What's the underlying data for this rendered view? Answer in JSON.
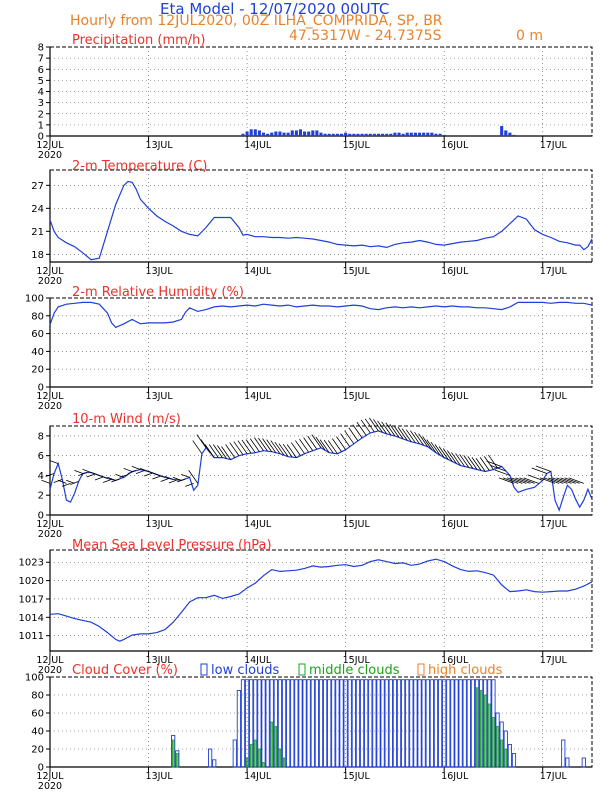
{
  "header": {
    "title": "Eta Model - 12/07/2020 00UTC",
    "subtitle": "Hourly from 12JUL2020, 00Z  ILHA_COMPRIDA, SP, BR",
    "coordinates": "47.5317W - 24.7375S",
    "elevation": "0  m"
  },
  "colors": {
    "series": "#1f3fd8",
    "title": "#e8322c",
    "header": "#e8822a",
    "middle": "#1aa31a",
    "high": "#e8822a"
  },
  "x_axis": {
    "tick_labels": [
      "12JUL",
      "13JUL",
      "14JUL",
      "15JUL",
      "16JUL",
      "17JUL"
    ],
    "year_label": "2020",
    "ticks": [
      0,
      24,
      48,
      72,
      96,
      120
    ],
    "range_hours": [
      0,
      132
    ]
  },
  "chart_data": [
    {
      "type": "bar",
      "title": "Precipitation (mm/h)",
      "ylim": [
        0,
        8
      ],
      "y_ticks": [
        "0",
        "1",
        "2",
        "3",
        "4",
        "5",
        "6",
        "7",
        "8"
      ],
      "x_hours": [
        47,
        48,
        49,
        50,
        51,
        52,
        53,
        54,
        55,
        56,
        57,
        58,
        59,
        60,
        61,
        62,
        63,
        64,
        65,
        66,
        67,
        68,
        69,
        70,
        71,
        72,
        73,
        74,
        75,
        76,
        77,
        78,
        79,
        80,
        81,
        82,
        83,
        84,
        85,
        86,
        87,
        88,
        89,
        90,
        91,
        92,
        93,
        94,
        95,
        96,
        97,
        98,
        99,
        100,
        101,
        102,
        103,
        104,
        105,
        106,
        107,
        108,
        109,
        110,
        111,
        112,
        113
      ],
      "values": [
        0.2,
        0.4,
        0.6,
        0.6,
        0.5,
        0.3,
        0.2,
        0.3,
        0.4,
        0.4,
        0.3,
        0.3,
        0.5,
        0.5,
        0.6,
        0.4,
        0.4,
        0.5,
        0.5,
        0.3,
        0.2,
        0.2,
        0.2,
        0.2,
        0.2,
        0.3,
        0.2,
        0.2,
        0.2,
        0.2,
        0.2,
        0.2,
        0.2,
        0.2,
        0.2,
        0.2,
        0.2,
        0.3,
        0.3,
        0.2,
        0.3,
        0.3,
        0.3,
        0.3,
        0.3,
        0.3,
        0.3,
        0.2,
        0.2,
        0.1,
        0,
        0,
        0,
        0,
        0,
        0,
        0,
        0,
        0,
        0,
        0,
        0,
        0,
        0.9,
        0.5,
        0.3,
        0.1
      ]
    },
    {
      "type": "line",
      "title": "2-m Temperature (C)",
      "ylim": [
        17,
        29
      ],
      "y_ticks": [
        "18",
        "21",
        "24",
        "27"
      ],
      "y_tick_values": [
        18,
        21,
        24,
        27
      ],
      "x": [
        0,
        1,
        2,
        4,
        6,
        8,
        10,
        12,
        14,
        16,
        18,
        19,
        20,
        21,
        22,
        24,
        26,
        28,
        30,
        32,
        34,
        36,
        38,
        40,
        42,
        44,
        46,
        47,
        48,
        50,
        52,
        54,
        56,
        58,
        60,
        62,
        64,
        66,
        68,
        70,
        72,
        74,
        76,
        78,
        80,
        82,
        84,
        86,
        88,
        90,
        92,
        94,
        96,
        98,
        100,
        102,
        104,
        106,
        108,
        110,
        112,
        114,
        116,
        118,
        120,
        122,
        124,
        126,
        128,
        129,
        130,
        131,
        132
      ],
      "values": [
        22.5,
        21,
        20.2,
        19.5,
        19,
        18.2,
        17.3,
        17.5,
        21,
        24.5,
        27,
        27.5,
        27.4,
        26.5,
        25.2,
        24,
        23,
        22.3,
        21.7,
        21,
        20.6,
        20.4,
        21.5,
        22.8,
        22.8,
        22.8,
        21.5,
        20.5,
        20.6,
        20.3,
        20.3,
        20.2,
        20.2,
        20.1,
        20.2,
        20.1,
        20,
        19.8,
        19.6,
        19.3,
        19.2,
        19.1,
        19.2,
        19,
        19.1,
        18.9,
        19.3,
        19.5,
        19.6,
        19.8,
        19.6,
        19.3,
        19.2,
        19.4,
        19.6,
        19.7,
        19.8,
        20.1,
        20.3,
        21,
        22,
        23,
        22.6,
        21.2,
        20.6,
        20.2,
        19.7,
        19.5,
        19.2,
        19.2,
        18.6,
        19,
        20
      ]
    },
    {
      "type": "line",
      "title": "2-m Relative Humidity (%)",
      "ylim": [
        0,
        100
      ],
      "y_ticks": [
        "0",
        "20",
        "40",
        "60",
        "80",
        "100"
      ],
      "y_tick_values": [
        0,
        20,
        40,
        60,
        80,
        100
      ],
      "x": [
        0,
        1,
        2,
        4,
        6,
        8,
        10,
        12,
        14,
        15,
        16,
        18,
        20,
        22,
        24,
        26,
        28,
        30,
        32,
        33,
        34,
        36,
        38,
        40,
        42,
        44,
        46,
        48,
        50,
        52,
        54,
        56,
        58,
        60,
        62,
        64,
        66,
        68,
        70,
        72,
        74,
        76,
        78,
        80,
        82,
        84,
        86,
        88,
        90,
        92,
        94,
        96,
        98,
        100,
        102,
        104,
        106,
        108,
        110,
        112,
        114,
        116,
        118,
        120,
        122,
        124,
        126,
        128,
        130,
        132
      ],
      "values": [
        70,
        83,
        90,
        93,
        94,
        95,
        95,
        93,
        83,
        72,
        67,
        71,
        76,
        71,
        72,
        72,
        72,
        73,
        76,
        84,
        89,
        85,
        87,
        90,
        91,
        90,
        91,
        92,
        91,
        93,
        92,
        91,
        92,
        90,
        91,
        92,
        91,
        91,
        90,
        91,
        92,
        91,
        88,
        87,
        89,
        90,
        89,
        90,
        89,
        90,
        91,
        90,
        91,
        90,
        90,
        89,
        89,
        88,
        87,
        90,
        95,
        95,
        95,
        95,
        94,
        95,
        95,
        94,
        94,
        92
      ]
    },
    {
      "type": "line",
      "title": "10-m Wind (m/s)",
      "ylim": [
        0,
        9
      ],
      "y_ticks": [
        "0",
        "2",
        "4",
        "6",
        "8"
      ],
      "y_tick_values": [
        0,
        2,
        4,
        6,
        8
      ],
      "x": [
        0,
        1,
        2,
        3,
        4,
        5,
        6,
        7,
        8,
        9,
        10,
        12,
        14,
        16,
        18,
        20,
        22,
        24,
        26,
        28,
        30,
        32,
        34,
        35,
        36,
        37,
        38,
        40,
        42,
        44,
        46,
        48,
        50,
        52,
        54,
        56,
        58,
        60,
        62,
        64,
        66,
        68,
        70,
        72,
        74,
        76,
        78,
        80,
        82,
        84,
        86,
        88,
        90,
        92,
        94,
        96,
        98,
        100,
        102,
        104,
        106,
        108,
        110,
        112,
        113,
        114,
        116,
        118,
        120,
        121,
        122,
        123,
        124,
        125,
        126,
        127,
        128,
        129,
        130,
        131,
        132
      ],
      "values": [
        2.6,
        4.2,
        5.2,
        3.6,
        1.5,
        1.3,
        2.2,
        3.4,
        4.2,
        4.3,
        4.3,
        4,
        3.7,
        3.5,
        3.8,
        4.4,
        4.6,
        4.4,
        4.1,
        3.8,
        3.6,
        3.5,
        3.8,
        2.5,
        3,
        6.2,
        6.8,
        5.8,
        5.8,
        5.6,
        6,
        6.2,
        6.3,
        6.5,
        6.4,
        6.2,
        5.9,
        5.8,
        6.2,
        6.5,
        6.8,
        6.3,
        6.2,
        6.6,
        7.2,
        7.8,
        8.3,
        8.5,
        8.2,
        8,
        7.7,
        7.4,
        7.2,
        6.9,
        6.3,
        5.8,
        5.4,
        5,
        4.8,
        4.6,
        4.4,
        4.6,
        4.9,
        4,
        2.8,
        2.3,
        2.6,
        2.8,
        3.5,
        4.2,
        4.4,
        1.5,
        0.5,
        1.8,
        3,
        2.6,
        1.6,
        0.8,
        1.5,
        2.6,
        1.6
      ]
    },
    {
      "type": "line",
      "title": "Mean Sea Level Pressure (hPa)",
      "ylim": [
        1008.5,
        1025
      ],
      "y_ticks": [
        "1011",
        "1014",
        "1017",
        "1020",
        "1023"
      ],
      "y_tick_values": [
        1011,
        1014,
        1017,
        1020,
        1023
      ],
      "x": [
        0,
        2,
        4,
        6,
        8,
        10,
        12,
        14,
        16,
        17,
        18,
        20,
        22,
        24,
        26,
        28,
        30,
        32,
        34,
        36,
        38,
        40,
        42,
        44,
        46,
        48,
        50,
        52,
        54,
        56,
        58,
        60,
        62,
        64,
        66,
        68,
        70,
        72,
        74,
        76,
        78,
        80,
        82,
        84,
        86,
        88,
        90,
        92,
        94,
        96,
        98,
        100,
        102,
        104,
        106,
        108,
        110,
        112,
        114,
        116,
        118,
        120,
        122,
        124,
        126,
        128,
        130,
        132
      ],
      "values": [
        1014.5,
        1014.6,
        1014.2,
        1013.8,
        1013.5,
        1013.2,
        1012.5,
        1011.5,
        1010.4,
        1010.1,
        1010.4,
        1011.1,
        1011.3,
        1011.3,
        1011.5,
        1012,
        1013.2,
        1014.8,
        1016.5,
        1017.2,
        1017.2,
        1017.6,
        1017.1,
        1017.4,
        1017.8,
        1018.8,
        1019.6,
        1020.8,
        1021.8,
        1021.5,
        1021.6,
        1021.7,
        1022,
        1022.4,
        1022.2,
        1022.3,
        1022.5,
        1022.6,
        1022.3,
        1022.5,
        1023.1,
        1023.4,
        1023.1,
        1022.8,
        1022.9,
        1022.5,
        1022.7,
        1023.2,
        1023.5,
        1023.1,
        1022.4,
        1021.8,
        1021.5,
        1021.6,
        1021.3,
        1020.9,
        1019.3,
        1018.2,
        1018.3,
        1018.5,
        1018.2,
        1018.1,
        1018.2,
        1018.3,
        1018.3,
        1018.6,
        1019.1,
        1019.8
      ]
    },
    {
      "type": "bar",
      "title": "Cloud Cover (%)",
      "ylim": [
        0,
        100
      ],
      "y_ticks": [
        "0",
        "20",
        "40",
        "60",
        "80",
        "100"
      ],
      "y_tick_values": [
        0,
        20,
        40,
        60,
        80,
        100
      ],
      "legend": [
        "low clouds",
        "middle clouds",
        "high clouds"
      ],
      "x_hours": [
        30,
        31,
        39,
        40,
        45,
        46,
        47,
        48,
        49,
        50,
        51,
        52,
        53,
        54,
        55,
        56,
        57,
        58,
        59,
        60,
        61,
        62,
        63,
        64,
        65,
        66,
        67,
        68,
        69,
        70,
        71,
        72,
        73,
        74,
        75,
        76,
        77,
        78,
        79,
        80,
        81,
        82,
        83,
        84,
        85,
        86,
        87,
        88,
        89,
        90,
        91,
        92,
        93,
        94,
        95,
        96,
        97,
        98,
        99,
        100,
        101,
        102,
        103,
        104,
        105,
        106,
        107,
        108,
        109,
        110,
        111,
        112,
        113,
        125,
        126,
        130
      ],
      "low": [
        35,
        18,
        20,
        8,
        30,
        85,
        97,
        97,
        97,
        97,
        97,
        97,
        97,
        97,
        97,
        97,
        97,
        97,
        97,
        97,
        97,
        97,
        97,
        97,
        97,
        97,
        97,
        97,
        97,
        97,
        97,
        97,
        97,
        97,
        97,
        97,
        97,
        97,
        97,
        97,
        97,
        97,
        97,
        97,
        97,
        97,
        97,
        97,
        97,
        97,
        97,
        97,
        97,
        97,
        97,
        97,
        97,
        97,
        97,
        97,
        97,
        97,
        97,
        97,
        97,
        97,
        97,
        97,
        60,
        50,
        40,
        25,
        15,
        30,
        10,
        10
      ],
      "middle": [
        30,
        15,
        0,
        0,
        0,
        0,
        0,
        10,
        25,
        30,
        20,
        5,
        0,
        50,
        45,
        20,
        10,
        0,
        0,
        0,
        0,
        0,
        0,
        0,
        0,
        0,
        0,
        0,
        0,
        0,
        0,
        0,
        0,
        0,
        0,
        0,
        0,
        0,
        0,
        0,
        0,
        0,
        0,
        0,
        0,
        0,
        0,
        0,
        0,
        0,
        0,
        0,
        0,
        0,
        0,
        0,
        0,
        0,
        0,
        0,
        0,
        0,
        0,
        88,
        85,
        80,
        70,
        55,
        45,
        30,
        20,
        0,
        0,
        0,
        0,
        0
      ]
    }
  ]
}
